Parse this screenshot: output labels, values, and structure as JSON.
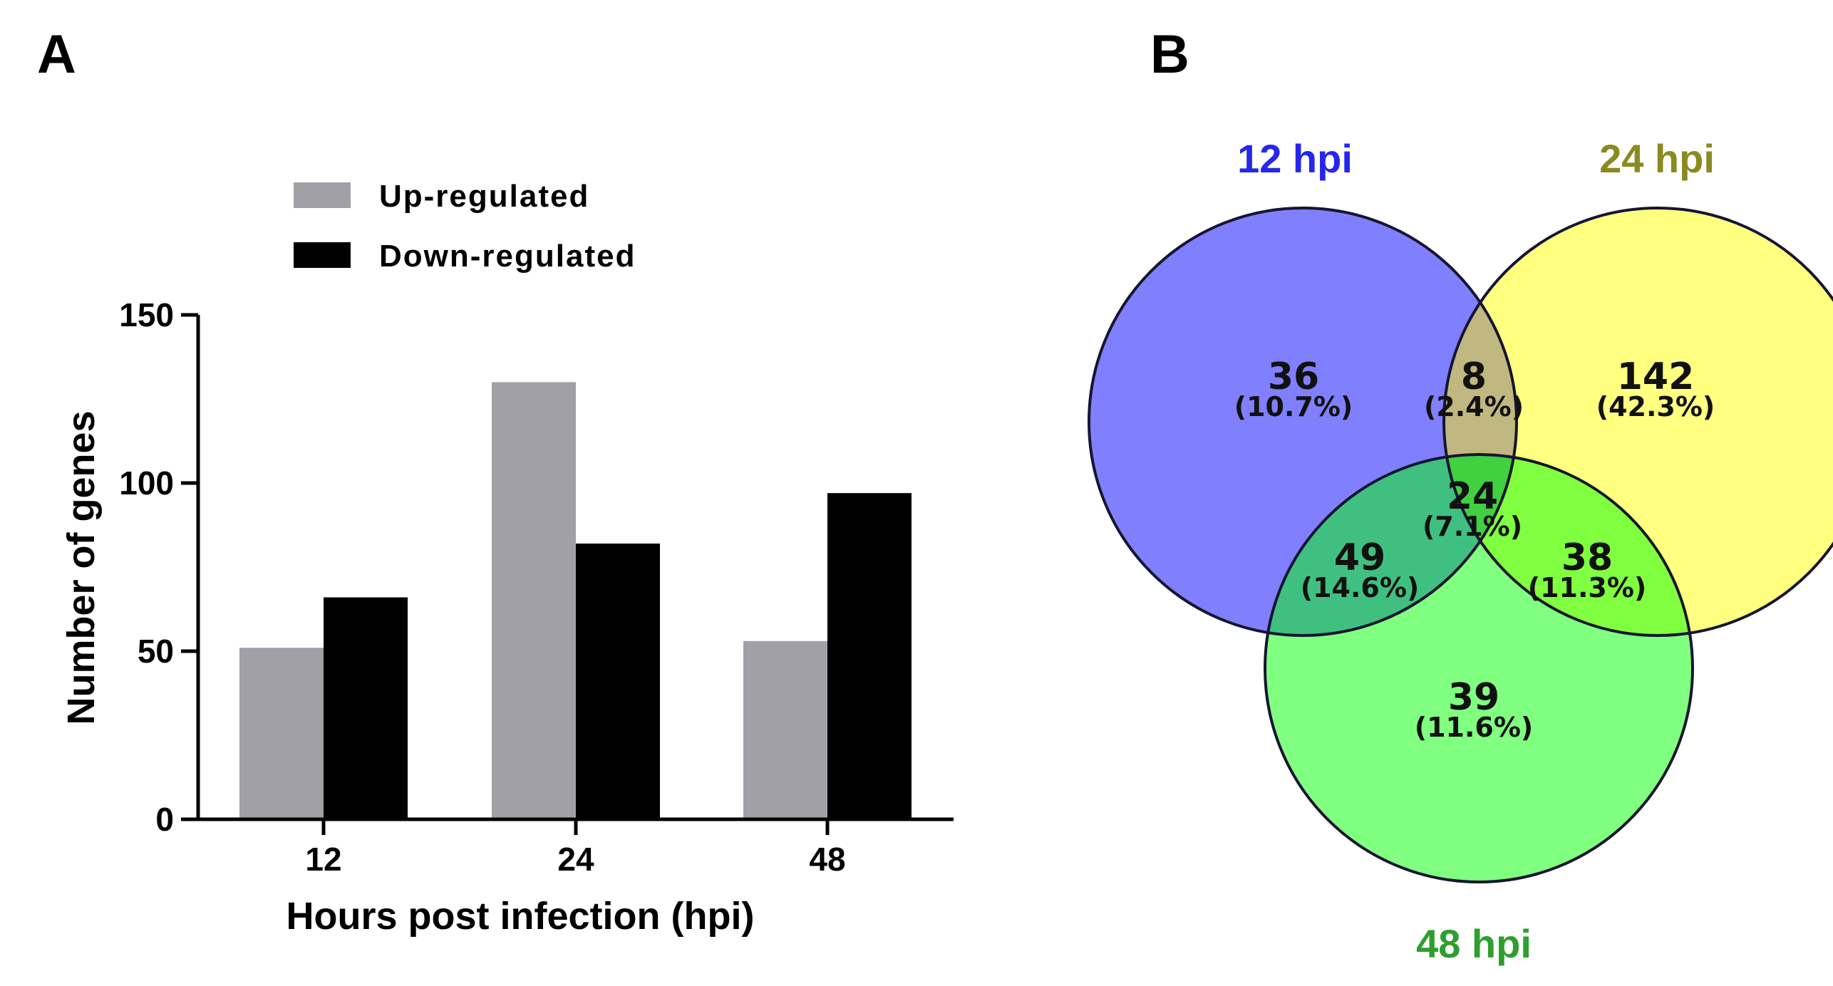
{
  "panels": {
    "a_label": "A",
    "b_label": "B"
  },
  "chart_data": [
    {
      "type": "bar",
      "title": "",
      "xlabel": "Hours post infection (hpi)",
      "ylabel": "Number of genes",
      "categories": [
        "12",
        "24",
        "48"
      ],
      "ylim": [
        0,
        150
      ],
      "yticks": [
        0,
        50,
        100,
        150
      ],
      "legend_position": "top",
      "series": [
        {
          "name": "Up-regulated",
          "values": [
            51,
            130,
            53
          ],
          "color": "#a1a0a5"
        },
        {
          "name": "Down-regulated",
          "values": [
            66,
            82,
            97
          ],
          "color": "#000000"
        }
      ]
    },
    {
      "type": "venn",
      "sets": [
        {
          "name": "12 hpi",
          "color": "#8080ff",
          "label_color": "#2626ee"
        },
        {
          "name": "24 hpi",
          "color": "#ffff80",
          "label_color": "#8a8a20"
        },
        {
          "name": "48 hpi",
          "color": "#80ff80",
          "label_color": "#2e9e2e"
        }
      ],
      "regions": [
        {
          "id": "12_only",
          "count": "36",
          "percent": "(10.7%)"
        },
        {
          "id": "12_24",
          "count": "8",
          "percent": "(2.4%)"
        },
        {
          "id": "24_only",
          "count": "142",
          "percent": "(42.3%)"
        },
        {
          "id": "12_48",
          "count": "49",
          "percent": "(14.6%)"
        },
        {
          "id": "all",
          "count": "24",
          "percent": "(7.1%)"
        },
        {
          "id": "24_48",
          "count": "38",
          "percent": "(11.3%)"
        },
        {
          "id": "48_only",
          "count": "39",
          "percent": "(11.6%)"
        }
      ],
      "overlap_colors": {
        "12_24": "#c0b880",
        "12_48": "#40c080",
        "24_48": "#80ff40",
        "all": "#40d040"
      }
    }
  ]
}
